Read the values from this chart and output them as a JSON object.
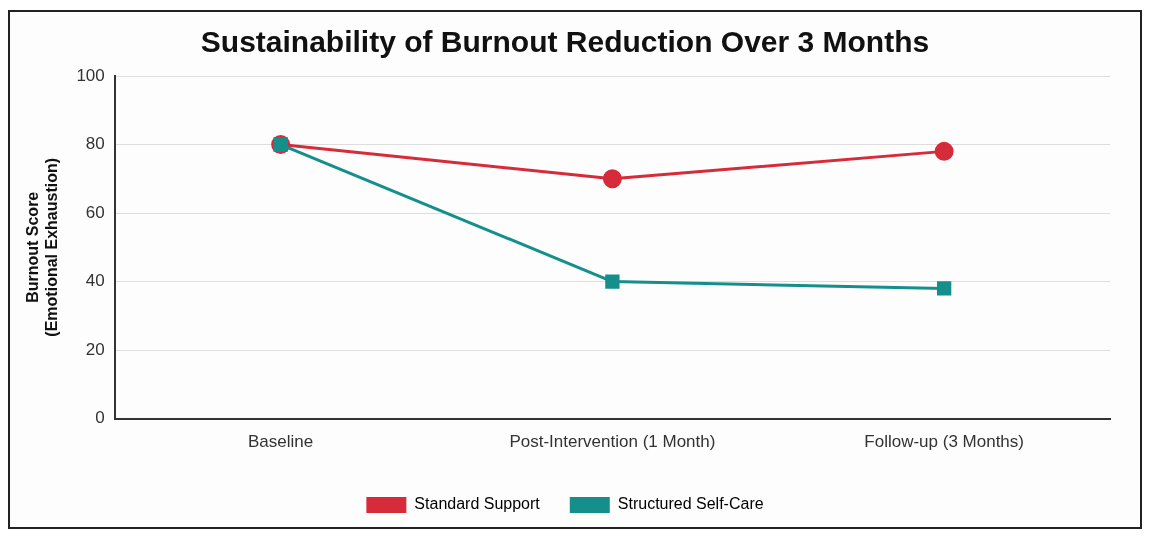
{
  "chart_data": {
    "type": "line",
    "title": "Sustainability of Burnout Reduction Over 3 Months",
    "ylabel": "Burnout Score\n(Emotional Exhaustion)",
    "categories": [
      "Baseline",
      "Post-Intervention (1 Month)",
      "Follow-up (3 Months)"
    ],
    "series": [
      {
        "name": "Standard Support",
        "color": "#d62b3a",
        "marker": "circle",
        "values": [
          80,
          70,
          78
        ]
      },
      {
        "name": "Structured Self-Care",
        "color": "#158f8c",
        "marker": "square",
        "values": [
          80,
          40,
          38
        ]
      }
    ],
    "ylim": [
      0,
      100
    ],
    "yticks": [
      0,
      20,
      40,
      60,
      80,
      100
    ],
    "grid": "y",
    "legend": "bottom",
    "line_style": "solid"
  }
}
